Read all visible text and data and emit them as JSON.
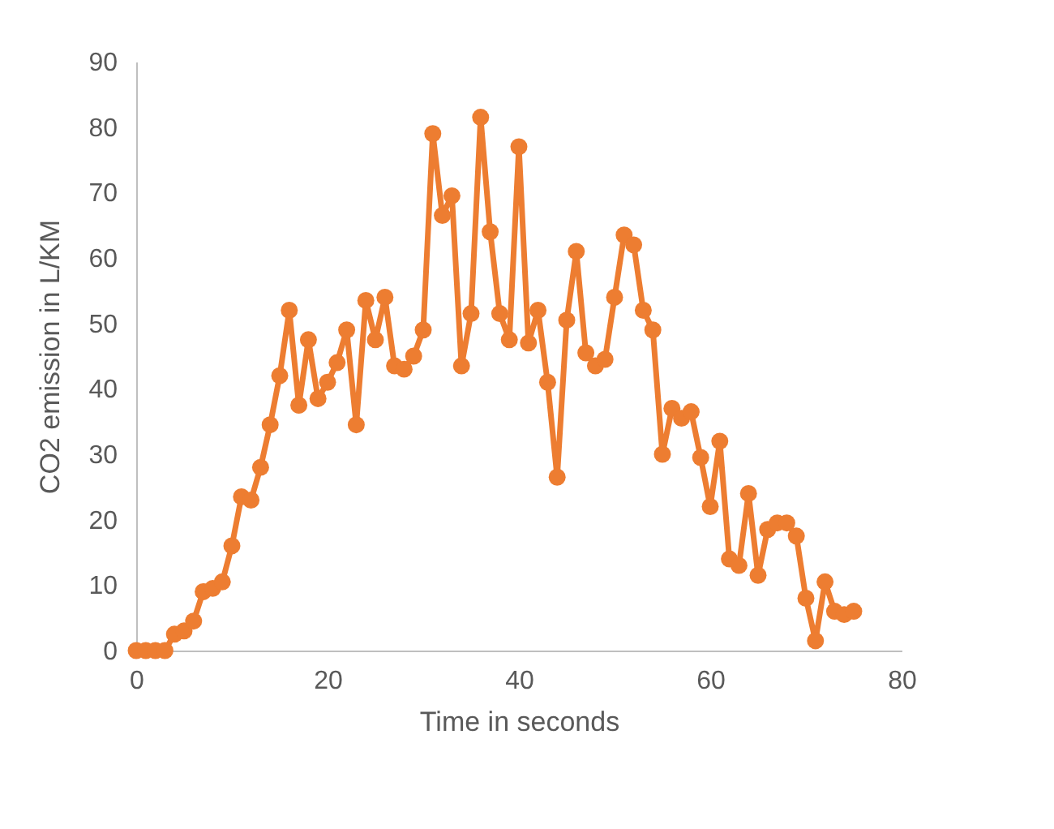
{
  "chart_data": {
    "type": "line",
    "xlabel": "Time in seconds",
    "ylabel": "CO2 emission in L/KM",
    "x": [
      0,
      1,
      2,
      3,
      4,
      5,
      6,
      7,
      8,
      9,
      10,
      11,
      12,
      13,
      14,
      15,
      16,
      17,
      18,
      19,
      20,
      21,
      22,
      23,
      24,
      25,
      26,
      27,
      28,
      29,
      30,
      31,
      32,
      33,
      34,
      35,
      36,
      37,
      38,
      39,
      40,
      41,
      42,
      43,
      44,
      45,
      46,
      47,
      48,
      49,
      50,
      51,
      52,
      53,
      54,
      55,
      56,
      57,
      58,
      59,
      60,
      61,
      62,
      63,
      64,
      65,
      66,
      67,
      68,
      69,
      70,
      71,
      72,
      73,
      74,
      75
    ],
    "series": [
      {
        "color": "#ed7d31",
        "values": [
          0,
          0,
          0,
          0,
          2.5,
          3,
          4.5,
          9,
          9.5,
          10.5,
          16,
          23.5,
          23,
          28,
          34.5,
          42,
          52,
          37.5,
          47.5,
          38.5,
          41,
          44,
          49,
          34.5,
          53.5,
          47.5,
          54,
          43.5,
          43,
          45,
          49,
          79,
          66.5,
          69.5,
          43.5,
          51.5,
          81.5,
          64,
          51.5,
          47.5,
          77,
          47,
          52,
          41,
          26.5,
          50.5,
          61,
          45.5,
          43.5,
          44.5,
          54,
          63.5,
          62,
          52,
          49,
          30,
          37,
          35.5,
          36.5,
          29.5,
          22,
          32,
          14,
          13,
          24,
          11.5,
          18.5,
          19.5,
          19.5,
          17.5,
          8,
          1.5,
          10.5,
          6,
          5.5,
          6
        ]
      }
    ],
    "xlim": [
      0,
      80
    ],
    "xticks": [
      0,
      20,
      40,
      60,
      80
    ],
    "ylim": [
      0,
      90
    ],
    "yticks": [
      0,
      10,
      20,
      30,
      40,
      50,
      60,
      70,
      80,
      90
    ],
    "marker": "circle",
    "grid": false
  }
}
